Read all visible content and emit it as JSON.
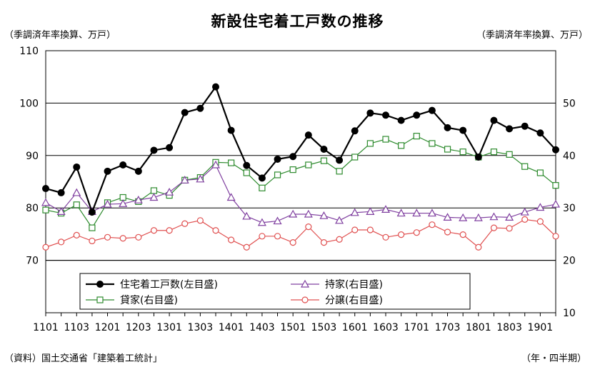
{
  "chart_data": {
    "type": "line",
    "title": "新設住宅着工戸数の推移",
    "left_unit": "（季調済年率換算、万戸）",
    "right_unit": "（季調済年率換算、万戸）",
    "source": "（資料）国土交通省「建築着工統計」",
    "x_unit": "（年・四半期）",
    "x": [
      "1101",
      "1102",
      "1103",
      "1104",
      "1201",
      "1202",
      "1203",
      "1204",
      "1301",
      "1302",
      "1303",
      "1304",
      "1401",
      "1402",
      "1403",
      "1404",
      "1501",
      "1502",
      "1503",
      "1504",
      "1601",
      "1602",
      "1603",
      "1604",
      "1701",
      "1702",
      "1703",
      "1704",
      "1801",
      "1802",
      "1803",
      "1804",
      "1901",
      "1902"
    ],
    "x_tick_labels": [
      "1101",
      "1103",
      "1201",
      "1203",
      "1301",
      "1303",
      "1401",
      "1403",
      "1501",
      "1503",
      "1601",
      "1603",
      "1701",
      "1703",
      "1801",
      "1803",
      "1901"
    ],
    "left_axis": {
      "min": 60,
      "max": 110,
      "ticks": [
        70,
        80,
        90,
        100,
        110
      ]
    },
    "right_axis": {
      "min": 10,
      "max": 60,
      "ticks": [
        10,
        20,
        30,
        40,
        50
      ]
    },
    "grid": true,
    "legend_position": "bottom-inside",
    "series": [
      {
        "name": "住宅着工戸数(左目盛)",
        "axis": "left",
        "marker": "filled-circle",
        "color": "#000000",
        "values": [
          83.7,
          82.9,
          87.8,
          79.2,
          87.0,
          88.2,
          87.0,
          91.0,
          91.5,
          98.2,
          99.0,
          103.1,
          94.8,
          88.1,
          85.7,
          89.3,
          89.8,
          93.9,
          91.2,
          89.1,
          94.7,
          98.1,
          97.7,
          96.7,
          97.7,
          98.6,
          95.3,
          94.8,
          89.7,
          96.7,
          95.1,
          95.6,
          94.3,
          91.1
        ]
      },
      {
        "name": "持家(右目盛)",
        "axis": "right",
        "marker": "triangle",
        "color": "#8040a0",
        "values": [
          31.0,
          29.3,
          32.9,
          29.3,
          30.7,
          30.8,
          31.5,
          32.0,
          33.0,
          35.3,
          35.5,
          38.2,
          32.0,
          28.4,
          27.2,
          27.5,
          28.8,
          28.8,
          28.5,
          27.6,
          29.1,
          29.3,
          29.7,
          29.0,
          29.0,
          29.0,
          28.2,
          28.1,
          28.1,
          28.3,
          28.2,
          29.2,
          30.1,
          30.7
        ]
      },
      {
        "name": "貸家(右目盛)",
        "axis": "right",
        "marker": "square",
        "color": "#2e8b2e",
        "values": [
          29.6,
          29.0,
          30.6,
          26.2,
          31.0,
          32.0,
          31.2,
          33.3,
          32.4,
          35.3,
          35.8,
          38.7,
          38.6,
          36.7,
          33.8,
          36.3,
          37.3,
          38.2,
          39.0,
          37.0,
          39.7,
          42.3,
          43.1,
          41.9,
          43.7,
          42.3,
          41.2,
          40.7,
          39.7,
          40.7,
          40.2,
          37.9,
          36.7,
          34.3
        ]
      },
      {
        "name": "分譲(右目盛)",
        "axis": "right",
        "marker": "circle",
        "color": "#e05050",
        "values": [
          22.5,
          23.5,
          24.8,
          23.7,
          24.4,
          24.2,
          24.4,
          25.7,
          25.7,
          27.0,
          27.6,
          25.7,
          23.9,
          22.5,
          24.6,
          24.6,
          23.4,
          26.4,
          23.4,
          24.0,
          25.8,
          25.8,
          24.4,
          24.9,
          25.3,
          26.8,
          25.4,
          24.9,
          22.5,
          26.2,
          26.1,
          27.8,
          27.4,
          24.6
        ]
      }
    ]
  }
}
